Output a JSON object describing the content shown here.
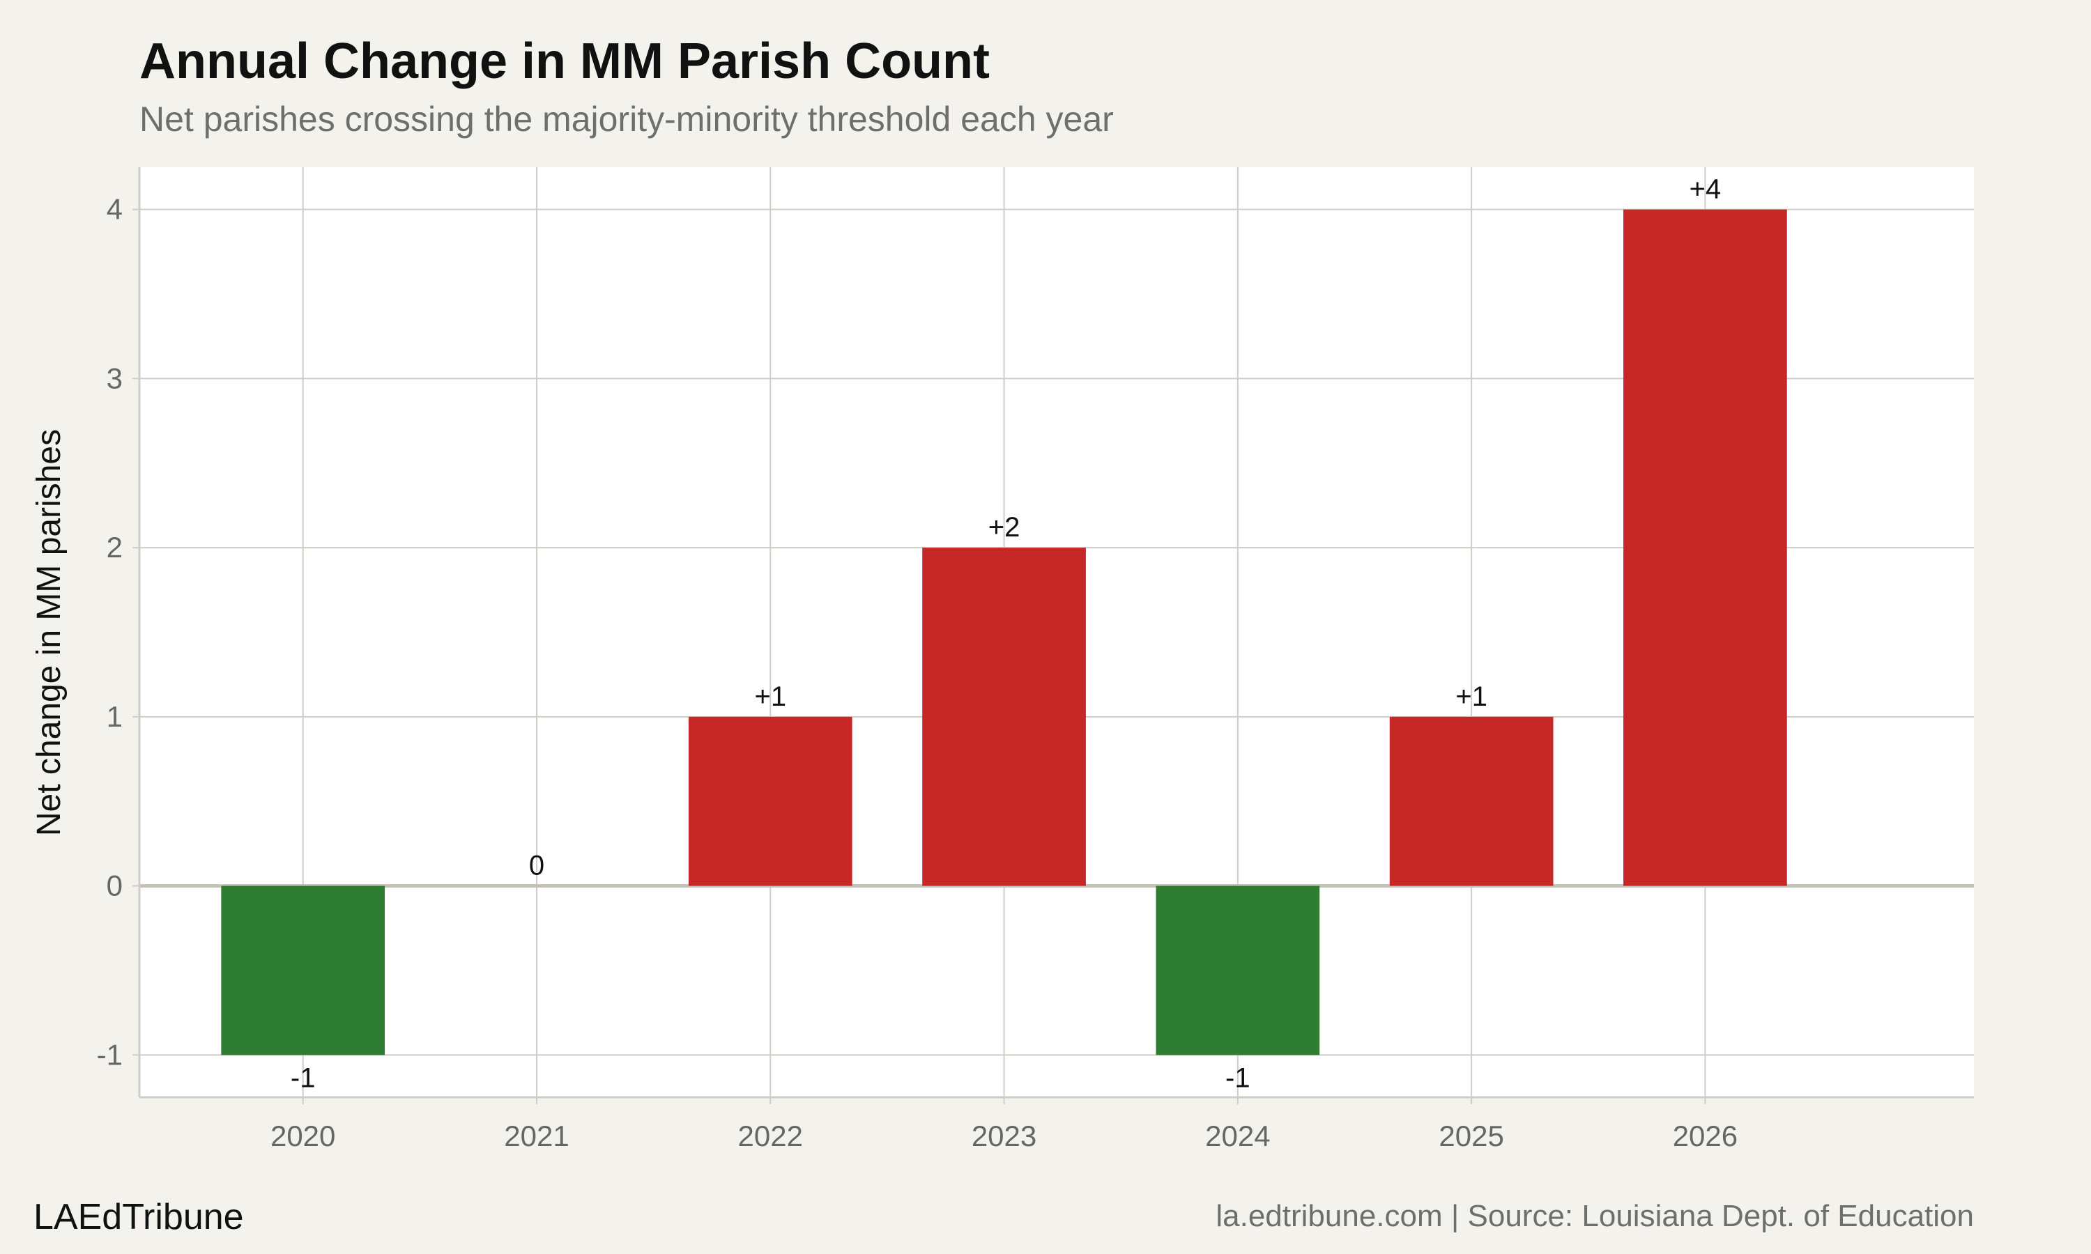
{
  "title": "Annual Change in MM Parish Count",
  "subtitle": "Net parishes crossing the majority-minority threshold each year",
  "brand": "LAEdTribune",
  "source": "la.edtribune.com | Source: Louisiana Dept. of Education",
  "colors": {
    "increase": "#c62828",
    "decrease": "#2e7d32",
    "background": "#f4f2ed",
    "panel": "#ffffff",
    "grid": "#d0cdc7"
  },
  "chart_data": {
    "type": "bar",
    "title": "Annual Change in MM Parish Count",
    "subtitle": "Net parishes crossing the majority-minority threshold each year",
    "xlabel": "",
    "ylabel": "Net change in MM parishes",
    "categories": [
      "2020",
      "2021",
      "2022",
      "2023",
      "2024",
      "2025",
      "2026"
    ],
    "values": [
      -1,
      0,
      1,
      2,
      -1,
      1,
      4
    ],
    "data_labels": [
      "-1",
      "0",
      "+1",
      "+2",
      "-1",
      "+1",
      "+4"
    ],
    "yticks": [
      -1,
      0,
      1,
      2,
      3,
      4
    ],
    "ytick_labels": [
      "-1",
      "0",
      "1",
      "2",
      "3",
      "4"
    ],
    "ylim": [
      -1.25,
      4.25
    ],
    "grid": true,
    "legend": "none"
  }
}
